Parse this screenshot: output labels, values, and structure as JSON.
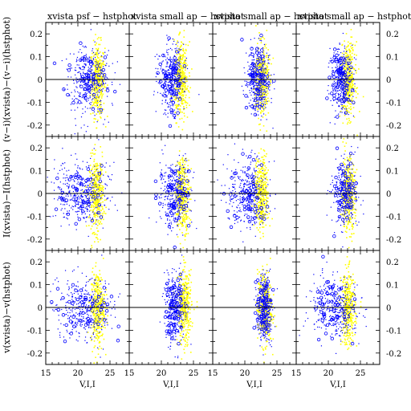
{
  "chart_data": [
    {
      "type": "scatter",
      "title": "xvista psf − hstphot",
      "x_range": [
        15,
        28
      ],
      "y_range": [
        -0.25,
        0.25
      ],
      "x_ticks": [
        "15",
        "20",
        "25"
      ],
      "y_ticks": [
        "-0.2",
        "-0.1",
        "0",
        "0.1",
        "0.2"
      ],
      "rows": [
        {
          "ylabel": "(v−i)(xvista)−(v−i)(hstphot)",
          "blue_center": 21.5,
          "blue_spread": 1.8,
          "yellow_center": 23.0
        },
        {
          "ylabel": "I(xvista)−I(hstphot)",
          "blue_center": 20.5,
          "blue_spread": 2.0,
          "yellow_center": 22.8
        },
        {
          "ylabel": "v(xvista)−v(hstphot)",
          "xlabel": "V,I,I",
          "blue_center": 21.0,
          "blue_spread": 2.2,
          "yellow_center": 23.0
        }
      ]
    },
    {
      "type": "scatter",
      "title": "xvista small ap − hstphot",
      "x_range": [
        15,
        28
      ],
      "y_range": [
        -0.25,
        0.25
      ],
      "x_ticks": [
        "15",
        "20",
        "25"
      ],
      "rows": [
        {
          "blue_center": 21.5,
          "blue_spread": 1.0,
          "yellow_center": 23.0
        },
        {
          "blue_center": 22.0,
          "blue_spread": 1.2,
          "yellow_center": 23.2
        },
        {
          "xlabel": "V,I,I",
          "blue_center": 22.0,
          "blue_spread": 0.8,
          "yellow_center": 23.5
        }
      ]
    },
    {
      "type": "scatter",
      "title": "xvista small ap − hstphot",
      "x_range": [
        15,
        28
      ],
      "y_range": [
        -0.25,
        0.25
      ],
      "x_ticks": [
        "15",
        "20",
        "25"
      ],
      "rows": [
        {
          "blue_center": 22.0,
          "blue_spread": 0.9,
          "yellow_center": 22.5
        },
        {
          "blue_center": 20.5,
          "blue_spread": 1.6,
          "yellow_center": 22.5
        },
        {
          "xlabel": "V,I,I",
          "blue_center": 23.0,
          "blue_spread": 0.6,
          "yellow_center": 23.0
        }
      ]
    },
    {
      "type": "scatter",
      "title": "xvista small ap − hstphot",
      "x_range": [
        15,
        28
      ],
      "y_range": [
        -0.25,
        0.25
      ],
      "x_ticks": [
        "15",
        "20",
        "25"
      ],
      "y_ticks": [
        "-0.2",
        "-0.1",
        "0",
        "0.1",
        "0.2"
      ],
      "rows": [
        {
          "blue_center": 22.0,
          "blue_spread": 0.8,
          "yellow_center": 23.0
        },
        {
          "blue_center": 22.5,
          "blue_spread": 1.0,
          "yellow_center": 23.0
        },
        {
          "xlabel": "V,I,I",
          "blue_center": 21.0,
          "blue_spread": 1.8,
          "yellow_center": 23.0
        }
      ]
    }
  ],
  "colors": {
    "series_a": "#0000ff",
    "series_b": "#ffff00",
    "axes": "#000000"
  }
}
